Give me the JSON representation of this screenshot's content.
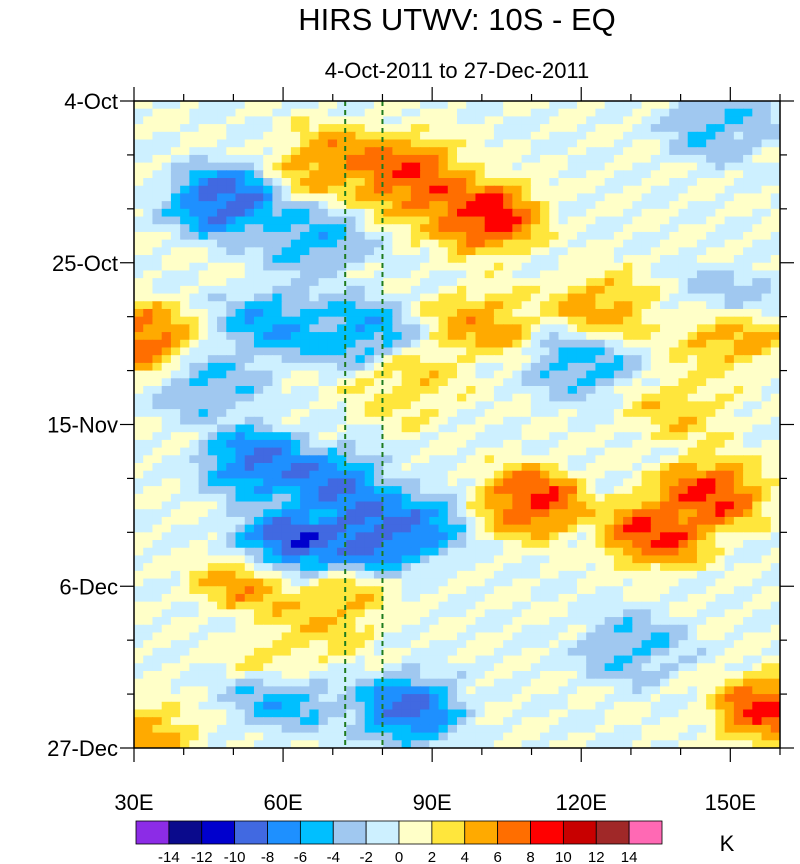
{
  "chart_data": {
    "type": "heatmap",
    "title": "HIRS UTWV: 10S - EQ",
    "subtitle": "4-Oct-2011 to 27-Dec-2011",
    "x": {
      "min": 30,
      "max": 160,
      "ticks": [
        {
          "value": 30,
          "label": "30E"
        },
        {
          "value": 60,
          "label": "60E"
        },
        {
          "value": 90,
          "label": "90E"
        },
        {
          "value": 120,
          "label": "120E"
        },
        {
          "value": 150,
          "label": "150E"
        }
      ],
      "minor_step": 10
    },
    "y": {
      "min_day": 0,
      "max_day": 84,
      "ticks": [
        {
          "day": 0,
          "label": "4-Oct"
        },
        {
          "day": 21,
          "label": "25-Oct"
        },
        {
          "day": 42,
          "label": "15-Nov"
        },
        {
          "day": 63,
          "label": "6-Dec"
        },
        {
          "day": 84,
          "label": "27-Dec"
        }
      ],
      "minor_step": 7
    },
    "reference_lines_lon": [
      72.5,
      80
    ],
    "colorbar": {
      "unit": "K",
      "labels": [
        "-14",
        "-12",
        "-10",
        "-8",
        "-6",
        "-4",
        "-2",
        "0",
        "2",
        "4",
        "6",
        "8",
        "10",
        "12",
        "14"
      ],
      "colors": [
        "#8c2ce6",
        "#0a0a8c",
        "#0000cd",
        "#4169e1",
        "#1e90ff",
        "#00bfff",
        "#a0c8f0",
        "#cdf0ff",
        "#ffffc8",
        "#ffe63c",
        "#ffaa00",
        "#ff6e00",
        "#ff0000",
        "#c80000",
        "#a02828",
        "#ff69b4"
      ]
    },
    "features": [
      {
        "lon": 48,
        "day": 13,
        "value": -11
      },
      {
        "lon": 66,
        "day": 18,
        "value": -6
      },
      {
        "lon": 58,
        "day": 29,
        "value": -7
      },
      {
        "lon": 75,
        "day": 30,
        "value": -7
      },
      {
        "lon": 45,
        "day": 37,
        "value": -5
      },
      {
        "lon": 55,
        "day": 47,
        "value": -10
      },
      {
        "lon": 70,
        "day": 50,
        "value": -10
      },
      {
        "lon": 86,
        "day": 55,
        "value": -8
      },
      {
        "lon": 78,
        "day": 56,
        "value": -12
      },
      {
        "lon": 60,
        "day": 58,
        "value": -13
      },
      {
        "lon": 85,
        "day": 79,
        "value": -10
      },
      {
        "lon": 60,
        "day": 77,
        "value": -7
      },
      {
        "lon": 120,
        "day": 34,
        "value": -6
      },
      {
        "lon": 148,
        "day": 3,
        "value": -5
      },
      {
        "lon": 150,
        "day": 26,
        "value": -4
      },
      {
        "lon": 130,
        "day": 71,
        "value": -5
      },
      {
        "lon": 70,
        "day": 8,
        "value": 7
      },
      {
        "lon": 84,
        "day": 9,
        "value": 9
      },
      {
        "lon": 90,
        "day": 12,
        "value": 8
      },
      {
        "lon": 101,
        "day": 15,
        "value": 11
      },
      {
        "lon": 31,
        "day": 31,
        "value": 9
      },
      {
        "lon": 100,
        "day": 29,
        "value": 6
      },
      {
        "lon": 124,
        "day": 27,
        "value": 6
      },
      {
        "lon": 150,
        "day": 30,
        "value": 7
      },
      {
        "lon": 85,
        "day": 37,
        "value": 4
      },
      {
        "lon": 110,
        "day": 52,
        "value": 10
      },
      {
        "lon": 135,
        "day": 56,
        "value": 10
      },
      {
        "lon": 146,
        "day": 51,
        "value": 10
      },
      {
        "lon": 54,
        "day": 62,
        "value": 7
      },
      {
        "lon": 70,
        "day": 66,
        "value": 5
      },
      {
        "lon": 60,
        "day": 73,
        "value": 4
      },
      {
        "lon": 158,
        "day": 79,
        "value": 10
      },
      {
        "lon": 32,
        "day": 83,
        "value": 6
      },
      {
        "lon": 140,
        "day": 40,
        "value": 4
      }
    ]
  }
}
